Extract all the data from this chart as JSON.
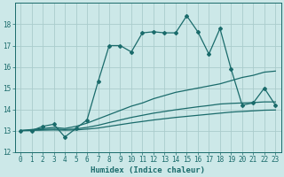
{
  "xlabel": "Humidex (Indice chaleur)",
  "xlim": [
    -0.5,
    23.5
  ],
  "ylim": [
    12,
    19
  ],
  "yticks": [
    12,
    13,
    14,
    15,
    16,
    17,
    18
  ],
  "xticks": [
    0,
    1,
    2,
    3,
    4,
    5,
    6,
    7,
    8,
    9,
    10,
    11,
    12,
    13,
    14,
    15,
    16,
    17,
    18,
    19,
    20,
    21,
    22,
    23
  ],
  "bg_color": "#cce8e8",
  "grid_color": "#aacccc",
  "line_color": "#1a6b6b",
  "lines": [
    {
      "x": [
        0,
        1,
        2,
        3,
        4,
        5,
        6,
        7,
        8,
        9,
        10,
        11,
        12,
        13,
        14,
        15,
        16,
        17,
        18,
        19,
        20,
        21,
        22,
        23
      ],
      "y": [
        13.0,
        13.0,
        13.2,
        13.3,
        12.7,
        13.1,
        13.5,
        15.3,
        17.0,
        17.0,
        16.7,
        17.6,
        17.65,
        17.6,
        17.6,
        18.4,
        17.65,
        16.6,
        17.8,
        15.9,
        14.2,
        14.3,
        15.0,
        14.2
      ],
      "marker": "D",
      "markersize": 2.0,
      "lw": 0.9
    },
    {
      "x": [
        0,
        1,
        2,
        3,
        4,
        5,
        6,
        7,
        8,
        9,
        10,
        11,
        12,
        13,
        14,
        15,
        16,
        17,
        18,
        19,
        20,
        21,
        22,
        23
      ],
      "y": [
        13.0,
        13.05,
        13.1,
        13.15,
        13.1,
        13.2,
        13.35,
        13.55,
        13.75,
        13.95,
        14.15,
        14.3,
        14.5,
        14.65,
        14.8,
        14.9,
        15.0,
        15.1,
        15.2,
        15.35,
        15.5,
        15.6,
        15.75,
        15.8
      ],
      "marker": null,
      "markersize": 0,
      "lw": 0.9
    },
    {
      "x": [
        0,
        1,
        2,
        3,
        4,
        5,
        6,
        7,
        8,
        9,
        10,
        11,
        12,
        13,
        14,
        15,
        16,
        17,
        18,
        19,
        20,
        21,
        22,
        23
      ],
      "y": [
        13.0,
        13.02,
        13.05,
        13.07,
        13.05,
        13.08,
        13.15,
        13.25,
        13.38,
        13.5,
        13.62,
        13.72,
        13.82,
        13.9,
        13.98,
        14.05,
        14.12,
        14.18,
        14.25,
        14.28,
        14.3,
        14.32,
        14.35,
        14.35
      ],
      "marker": null,
      "markersize": 0,
      "lw": 0.9
    },
    {
      "x": [
        0,
        1,
        2,
        3,
        4,
        5,
        6,
        7,
        8,
        9,
        10,
        11,
        12,
        13,
        14,
        15,
        16,
        17,
        18,
        19,
        20,
        21,
        22,
        23
      ],
      "y": [
        13.0,
        13.01,
        13.02,
        13.03,
        13.02,
        13.03,
        13.07,
        13.12,
        13.2,
        13.28,
        13.36,
        13.43,
        13.5,
        13.56,
        13.62,
        13.67,
        13.72,
        13.77,
        13.82,
        13.87,
        13.9,
        13.93,
        13.96,
        13.97
      ],
      "marker": null,
      "markersize": 0,
      "lw": 0.9
    }
  ],
  "font_color": "#1a6b6b",
  "tick_fontsize": 5.5,
  "label_fontsize": 6.5
}
